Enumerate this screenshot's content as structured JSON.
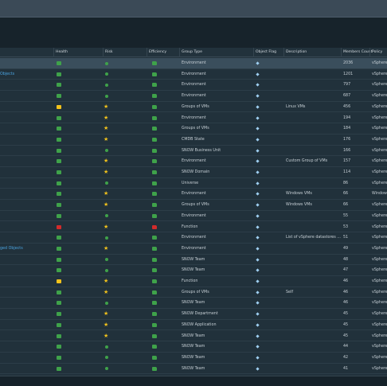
{
  "columns": [
    "",
    "Health",
    "Risk",
    "Efficiency",
    "Group Type",
    "Object Flag",
    "Description",
    "Members Count",
    "Policy"
  ],
  "colors": {
    "green": "#3fa24a",
    "yellow": "#f2c21b",
    "red": "#d22b2b",
    "group_link": "#4aa3df"
  },
  "icons": {
    "health": "health-badge-icon",
    "risk": "risk-icon",
    "efficiency": "efficiency-badge-icon",
    "flag": "object-flag-icon"
  },
  "rows": [
    {
      "name": "",
      "health": "green",
      "risk": "dot",
      "riskColor": "green",
      "efficiency": "green",
      "type": "Environment",
      "desc": "",
      "count": "2036",
      "policy": "vSphere",
      "selected": true
    },
    {
      "name": "Objects",
      "health": "green",
      "risk": "dot",
      "riskColor": "green",
      "efficiency": "green",
      "type": "Environment",
      "desc": "",
      "count": "1201",
      "policy": "vSphere"
    },
    {
      "name": "",
      "health": "green",
      "risk": "dot",
      "riskColor": "green",
      "efficiency": "green",
      "type": "Environment",
      "desc": "",
      "count": "797",
      "policy": "vSphere"
    },
    {
      "name": "",
      "health": "green",
      "risk": "dot",
      "riskColor": "green",
      "efficiency": "green",
      "type": "Environment",
      "desc": "",
      "count": "687",
      "policy": "vSphere"
    },
    {
      "name": "",
      "health": "yellow",
      "risk": "star",
      "riskColor": "yellow",
      "efficiency": "green",
      "type": "Groups of VMs",
      "desc": "Linux VMs",
      "count": "456",
      "policy": "vSphere"
    },
    {
      "name": "",
      "health": "green",
      "risk": "star",
      "riskColor": "yellow",
      "efficiency": "green",
      "type": "Environment",
      "desc": "",
      "count": "194",
      "policy": "vSphere"
    },
    {
      "name": "",
      "health": "green",
      "risk": "star",
      "riskColor": "yellow",
      "efficiency": "green",
      "type": "Groups of VMs",
      "desc": "",
      "count": "184",
      "policy": "vSphere"
    },
    {
      "name": "",
      "health": "green",
      "risk": "star",
      "riskColor": "yellow",
      "efficiency": "green",
      "type": "CMDB State",
      "desc": "",
      "count": "176",
      "policy": "vSphere"
    },
    {
      "name": "",
      "health": "green",
      "risk": "dot",
      "riskColor": "green",
      "efficiency": "green",
      "type": "SNOW Business Unit",
      "desc": "",
      "count": "166",
      "policy": "vSphere"
    },
    {
      "name": "",
      "health": "green",
      "risk": "star",
      "riskColor": "yellow",
      "efficiency": "green",
      "type": "Environment",
      "desc": "Custom Group of VMs",
      "count": "157",
      "policy": "vSphere"
    },
    {
      "name": "",
      "health": "green",
      "risk": "star",
      "riskColor": "yellow",
      "efficiency": "green",
      "type": "SNOW Domain",
      "desc": "",
      "count": "114",
      "policy": "vSphere"
    },
    {
      "name": "",
      "health": "green",
      "risk": "dot",
      "riskColor": "green",
      "efficiency": "green",
      "type": "Universe",
      "desc": "",
      "count": "86",
      "policy": "vSphere"
    },
    {
      "name": "",
      "health": "green",
      "risk": "star",
      "riskColor": "yellow",
      "efficiency": "green",
      "type": "Environment",
      "desc": "Windows VMs",
      "count": "66",
      "policy": "Window"
    },
    {
      "name": "",
      "health": "green",
      "risk": "star",
      "riskColor": "yellow",
      "efficiency": "green",
      "type": "Groups of VMs",
      "desc": "Windows VMs",
      "count": "66",
      "policy": "vSphere"
    },
    {
      "name": "",
      "health": "green",
      "risk": "dot",
      "riskColor": "green",
      "efficiency": "green",
      "type": "Environment",
      "desc": "",
      "count": "55",
      "policy": "vSphere"
    },
    {
      "name": "",
      "health": "red",
      "risk": "star",
      "riskColor": "yellow",
      "efficiency": "red",
      "type": "Function",
      "desc": "",
      "count": "53",
      "policy": "vSphere"
    },
    {
      "name": "",
      "health": "green",
      "risk": "dot",
      "riskColor": "green",
      "efficiency": "green",
      "type": "Environment",
      "desc": "List of vSphere datastores ...",
      "count": "51",
      "policy": "vSphere"
    },
    {
      "name": "ged Objects",
      "health": "green",
      "risk": "star",
      "riskColor": "yellow",
      "efficiency": "green",
      "type": "Environment",
      "desc": "",
      "count": "49",
      "policy": "vSphere"
    },
    {
      "name": "",
      "health": "green",
      "risk": "dot",
      "riskColor": "green",
      "efficiency": "green",
      "type": "SNOW Team",
      "desc": "",
      "count": "48",
      "policy": "vSphere"
    },
    {
      "name": "",
      "health": "green",
      "risk": "dot",
      "riskColor": "green",
      "efficiency": "green",
      "type": "SNOW Team",
      "desc": "",
      "count": "47",
      "policy": "vSphere"
    },
    {
      "name": "",
      "health": "yellow",
      "risk": "star",
      "riskColor": "yellow",
      "efficiency": "green",
      "type": "Function",
      "desc": "",
      "count": "46",
      "policy": "vSphere"
    },
    {
      "name": "",
      "health": "green",
      "risk": "star",
      "riskColor": "yellow",
      "efficiency": "green",
      "type": "Groups of VMs",
      "desc": "Self",
      "count": "46",
      "policy": "vSphere"
    },
    {
      "name": "",
      "health": "green",
      "risk": "dot",
      "riskColor": "green",
      "efficiency": "green",
      "type": "SNOW Team",
      "desc": "",
      "count": "46",
      "policy": "vSphere"
    },
    {
      "name": "",
      "health": "green",
      "risk": "star",
      "riskColor": "yellow",
      "efficiency": "green",
      "type": "SNOW Department",
      "desc": "",
      "count": "45",
      "policy": "vSphere"
    },
    {
      "name": "",
      "health": "green",
      "risk": "star",
      "riskColor": "yellow",
      "efficiency": "green",
      "type": "SNOW Application",
      "desc": "",
      "count": "45",
      "policy": "vSphere"
    },
    {
      "name": "",
      "health": "green",
      "risk": "star",
      "riskColor": "yellow",
      "efficiency": "green",
      "type": "SNOW Team",
      "desc": "",
      "count": "45",
      "policy": "vSphere"
    },
    {
      "name": "",
      "health": "green",
      "risk": "dot",
      "riskColor": "green",
      "efficiency": "green",
      "type": "SNOW Team",
      "desc": "",
      "count": "44",
      "policy": "vSphere"
    },
    {
      "name": "",
      "health": "green",
      "risk": "dot",
      "riskColor": "green",
      "efficiency": "green",
      "type": "SNOW Team",
      "desc": "",
      "count": "42",
      "policy": "vSphere"
    },
    {
      "name": "",
      "health": "green",
      "risk": "dot",
      "riskColor": "green",
      "efficiency": "green",
      "type": "SNOW Team",
      "desc": "",
      "count": "41",
      "policy": "vSphere"
    }
  ]
}
